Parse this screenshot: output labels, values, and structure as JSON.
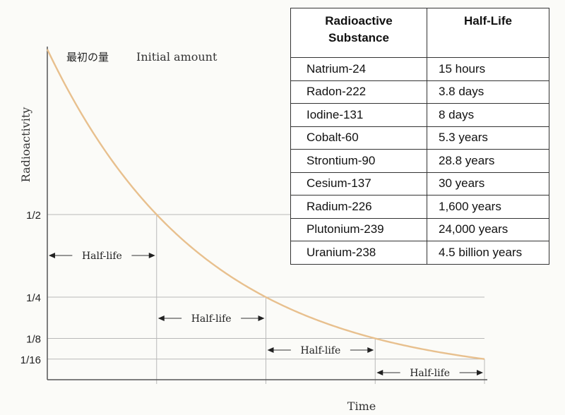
{
  "chart_data": {
    "type": "line",
    "title": "",
    "xlabel": "Time",
    "ylabel": "Radioactivity",
    "series": [
      {
        "values_description_units": "fraction of initial amount",
        "x": [
          0,
          0.25,
          0.5,
          0.75,
          1,
          1.25,
          1.5,
          1.75,
          2,
          2.25,
          2.5,
          2.75,
          3,
          3.25,
          3.5,
          3.75,
          4
        ],
        "y": [
          1,
          0.841,
          0.707,
          0.595,
          0.5,
          0.42,
          0.354,
          0.297,
          0.25,
          0.21,
          0.177,
          0.149,
          0.125,
          0.105,
          0.088,
          0.074,
          0.0625
        ]
      }
    ],
    "y_ticks": [
      "1/2",
      "1/4",
      "1/8",
      "1/16"
    ],
    "y_tick_values": [
      0.5,
      0.25,
      0.125,
      0.0625
    ],
    "x_unit": "half-lives",
    "xlim": [
      0,
      4
    ],
    "ylim": [
      0,
      1
    ],
    "annotations": {
      "initial_label_jp": "最初の量",
      "initial_label_en": "Initial amount",
      "half_life_label": "Half-life",
      "half_life_spans": [
        [
          0,
          1
        ],
        [
          1,
          2
        ],
        [
          2,
          3
        ],
        [
          3,
          4
        ]
      ]
    },
    "colors": {
      "curve": "#e8c08e",
      "guides": "#b9b9b9",
      "axis": "#555555"
    }
  },
  "table": {
    "headers": [
      "Radioactive Substance",
      "Half-Life"
    ],
    "rows": [
      [
        "Natrium-24",
        "15 hours"
      ],
      [
        "Radon-222",
        "3.8 days"
      ],
      [
        "Iodine-131",
        "8 days"
      ],
      [
        "Cobalt-60",
        "5.3 years"
      ],
      [
        "Strontium-90",
        "28.8 years"
      ],
      [
        "Cesium-137",
        "30 years"
      ],
      [
        "Radium-226",
        "1,600 years"
      ],
      [
        "Plutonium-239",
        "24,000 years"
      ],
      [
        "Uranium-238",
        "4.5 billion years"
      ]
    ]
  }
}
